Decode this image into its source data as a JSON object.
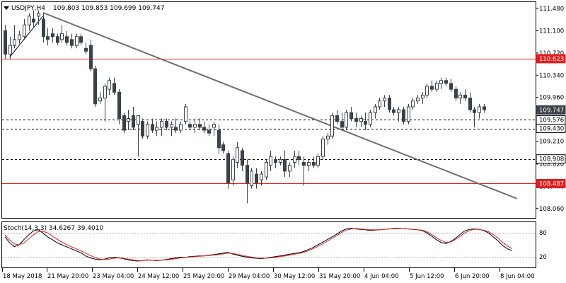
{
  "header": {
    "symbol": "USDJPY,H4",
    "ohlc": "109.803 109.853 109.699 109.747"
  },
  "stoch_header": {
    "label": "Stoch(14,3,3) 34.6267 39.4010"
  },
  "colors": {
    "candle": "#3a4149",
    "trendline": "#6e6e6e",
    "resistance": "#e02020",
    "current_price": "#3a4149",
    "stoch_main": "#000000",
    "stoch_signal": "#e02020"
  },
  "chart_data": [
    {
      "type": "candlestick",
      "title": "USDJPY,H4",
      "ylim": [
        107.9,
        111.59
      ],
      "y_ticks": [
        "111.480",
        "111.100",
        "110.720",
        "110.340",
        "109.960",
        "109.210",
        "108.820",
        "108.440",
        "108.060"
      ],
      "x_ticks": [
        "18 May 2018",
        "21 May 20:00",
        "23 May 04:00",
        "24 May 12:00",
        "25 May 20:00",
        "29 May 04:00",
        "30 May 12:00",
        "31 May 20:00",
        "4 Jun 04:00",
        "5 Jun 12:00",
        "6 Jun 20:00",
        "8 Jun 04:00"
      ],
      "price_labels": [
        {
          "value": 110.623,
          "text": "110.623",
          "style": "red"
        },
        {
          "value": 109.747,
          "text": "109.747",
          "style": "current"
        },
        {
          "value": 109.576,
          "text": "109.576",
          "style": "black"
        },
        {
          "value": 109.43,
          "text": "109.430",
          "style": "black"
        },
        {
          "value": 108.908,
          "text": "108.908",
          "style": "black"
        },
        {
          "value": 108.487,
          "text": "108.487",
          "style": "red"
        }
      ],
      "horizontal_lines": [
        {
          "value": 110.623,
          "style": "red-solid"
        },
        {
          "value": 109.576,
          "style": "black-dashed"
        },
        {
          "value": 109.43,
          "style": "black-dashed"
        },
        {
          "value": 108.908,
          "style": "black-dashed"
        },
        {
          "value": 108.487,
          "style": "red-solid"
        }
      ],
      "trendlines": [
        {
          "x1": 8,
          "y1": 111.41,
          "x2": 108,
          "y2": 108.23
        },
        {
          "x1": 1,
          "y1": 110.65,
          "x2": 8,
          "y2": 111.35
        }
      ],
      "candles": [
        {
          "o": 111.1,
          "h": 111.2,
          "l": 110.62,
          "c": 110.7
        },
        {
          "o": 110.7,
          "h": 111.0,
          "l": 110.62,
          "c": 110.85
        },
        {
          "o": 110.85,
          "h": 111.2,
          "l": 110.8,
          "c": 110.95
        },
        {
          "o": 110.95,
          "h": 111.1,
          "l": 110.88,
          "c": 111.03
        },
        {
          "o": 111.0,
          "h": 111.3,
          "l": 110.95,
          "c": 111.2
        },
        {
          "o": 111.2,
          "h": 111.4,
          "l": 111.1,
          "c": 111.35
        },
        {
          "o": 111.3,
          "h": 111.45,
          "l": 111.15,
          "c": 111.25
        },
        {
          "o": 111.35,
          "h": 111.45,
          "l": 111.2,
          "c": 111.4
        },
        {
          "o": 111.3,
          "h": 111.4,
          "l": 110.9,
          "c": 111.0
        },
        {
          "o": 111.0,
          "h": 111.15,
          "l": 110.85,
          "c": 110.95
        },
        {
          "o": 111.05,
          "h": 111.15,
          "l": 110.9,
          "c": 111.0
        },
        {
          "o": 111.0,
          "h": 111.05,
          "l": 110.85,
          "c": 110.9
        },
        {
          "o": 110.95,
          "h": 111.2,
          "l": 110.9,
          "c": 111.05
        },
        {
          "o": 111.0,
          "h": 111.1,
          "l": 110.85,
          "c": 110.9
        },
        {
          "o": 110.95,
          "h": 111.05,
          "l": 110.8,
          "c": 110.85
        },
        {
          "o": 110.85,
          "h": 111.05,
          "l": 110.8,
          "c": 111.0
        },
        {
          "o": 111.0,
          "h": 111.05,
          "l": 110.85,
          "c": 110.9
        },
        {
          "o": 110.8,
          "h": 110.9,
          "l": 110.7,
          "c": 110.75
        },
        {
          "o": 110.85,
          "h": 110.95,
          "l": 110.4,
          "c": 110.45
        },
        {
          "o": 110.45,
          "h": 110.5,
          "l": 109.8,
          "c": 109.85
        },
        {
          "o": 109.9,
          "h": 110.05,
          "l": 109.85,
          "c": 109.95
        },
        {
          "o": 109.95,
          "h": 110.2,
          "l": 109.55,
          "c": 110.15
        },
        {
          "o": 110.1,
          "h": 110.3,
          "l": 110.0,
          "c": 110.25
        },
        {
          "o": 110.2,
          "h": 110.3,
          "l": 110.0,
          "c": 110.05
        },
        {
          "o": 110.05,
          "h": 110.1,
          "l": 109.5,
          "c": 109.6
        },
        {
          "o": 109.65,
          "h": 109.7,
          "l": 109.35,
          "c": 109.4
        },
        {
          "o": 109.55,
          "h": 109.75,
          "l": 109.4,
          "c": 109.6
        },
        {
          "o": 109.65,
          "h": 109.8,
          "l": 109.4,
          "c": 109.45
        },
        {
          "o": 109.5,
          "h": 109.65,
          "l": 108.95,
          "c": 109.65
        },
        {
          "o": 109.55,
          "h": 109.6,
          "l": 109.25,
          "c": 109.3
        },
        {
          "o": 109.3,
          "h": 109.55,
          "l": 109.25,
          "c": 109.5
        },
        {
          "o": 109.5,
          "h": 109.6,
          "l": 109.35,
          "c": 109.4
        },
        {
          "o": 109.4,
          "h": 109.55,
          "l": 109.3,
          "c": 109.45
        },
        {
          "o": 109.45,
          "h": 109.6,
          "l": 109.3,
          "c": 109.55
        },
        {
          "o": 109.55,
          "h": 109.6,
          "l": 109.4,
          "c": 109.45
        },
        {
          "o": 109.45,
          "h": 109.55,
          "l": 109.3,
          "c": 109.5
        },
        {
          "o": 109.45,
          "h": 109.6,
          "l": 109.35,
          "c": 109.4
        },
        {
          "o": 109.4,
          "h": 109.55,
          "l": 109.35,
          "c": 109.5
        },
        {
          "o": 109.55,
          "h": 109.85,
          "l": 109.5,
          "c": 109.8
        },
        {
          "o": 109.5,
          "h": 109.55,
          "l": 109.4,
          "c": 109.45
        },
        {
          "o": 109.45,
          "h": 109.6,
          "l": 109.35,
          "c": 109.5
        },
        {
          "o": 109.5,
          "h": 109.6,
          "l": 109.4,
          "c": 109.45
        },
        {
          "o": 109.45,
          "h": 109.55,
          "l": 109.35,
          "c": 109.4
        },
        {
          "o": 109.4,
          "h": 109.5,
          "l": 109.3,
          "c": 109.35
        },
        {
          "o": 109.45,
          "h": 109.55,
          "l": 109.3,
          "c": 109.5
        },
        {
          "o": 109.4,
          "h": 109.5,
          "l": 109.0,
          "c": 109.1
        },
        {
          "o": 109.15,
          "h": 109.2,
          "l": 109.0,
          "c": 109.05
        },
        {
          "o": 109.0,
          "h": 109.05,
          "l": 108.4,
          "c": 108.5
        },
        {
          "o": 108.55,
          "h": 108.95,
          "l": 108.45,
          "c": 108.9
        },
        {
          "o": 108.85,
          "h": 109.2,
          "l": 108.75,
          "c": 109.1
        },
        {
          "o": 109.05,
          "h": 109.1,
          "l": 108.7,
          "c": 108.8
        },
        {
          "o": 108.8,
          "h": 108.9,
          "l": 108.15,
          "c": 108.5
        },
        {
          "o": 108.45,
          "h": 108.75,
          "l": 108.4,
          "c": 108.7
        },
        {
          "o": 108.65,
          "h": 108.75,
          "l": 108.4,
          "c": 108.5
        },
        {
          "o": 108.55,
          "h": 108.7,
          "l": 108.45,
          "c": 108.65
        },
        {
          "o": 108.6,
          "h": 108.9,
          "l": 108.55,
          "c": 108.85
        },
        {
          "o": 108.8,
          "h": 109.05,
          "l": 108.7,
          "c": 108.95
        },
        {
          "o": 108.9,
          "h": 108.95,
          "l": 108.75,
          "c": 108.85
        },
        {
          "o": 108.85,
          "h": 108.95,
          "l": 108.8,
          "c": 108.9
        },
        {
          "o": 108.9,
          "h": 109.05,
          "l": 108.6,
          "c": 108.7
        },
        {
          "o": 108.7,
          "h": 108.85,
          "l": 108.6,
          "c": 108.8
        },
        {
          "o": 108.85,
          "h": 109.05,
          "l": 108.75,
          "c": 108.95
        },
        {
          "o": 108.95,
          "h": 109.05,
          "l": 108.8,
          "c": 108.9
        },
        {
          "o": 108.85,
          "h": 108.95,
          "l": 108.45,
          "c": 108.8
        },
        {
          "o": 108.8,
          "h": 108.9,
          "l": 108.7,
          "c": 108.85
        },
        {
          "o": 108.85,
          "h": 108.95,
          "l": 108.75,
          "c": 108.8
        },
        {
          "o": 108.8,
          "h": 109.0,
          "l": 108.75,
          "c": 108.95
        },
        {
          "o": 108.95,
          "h": 109.3,
          "l": 108.9,
          "c": 109.25
        },
        {
          "o": 109.25,
          "h": 109.35,
          "l": 109.15,
          "c": 109.3
        },
        {
          "o": 109.3,
          "h": 109.7,
          "l": 109.25,
          "c": 109.65
        },
        {
          "o": 109.65,
          "h": 109.75,
          "l": 109.5,
          "c": 109.55
        },
        {
          "o": 109.55,
          "h": 109.7,
          "l": 109.4,
          "c": 109.45
        },
        {
          "o": 109.45,
          "h": 109.75,
          "l": 109.4,
          "c": 109.7
        },
        {
          "o": 109.7,
          "h": 109.8,
          "l": 109.55,
          "c": 109.6
        },
        {
          "o": 109.6,
          "h": 109.7,
          "l": 109.45,
          "c": 109.55
        },
        {
          "o": 109.55,
          "h": 109.65,
          "l": 109.45,
          "c": 109.6
        },
        {
          "o": 109.55,
          "h": 109.7,
          "l": 109.4,
          "c": 109.5
        },
        {
          "o": 109.5,
          "h": 109.75,
          "l": 109.45,
          "c": 109.7
        },
        {
          "o": 109.7,
          "h": 109.85,
          "l": 109.6,
          "c": 109.8
        },
        {
          "o": 109.8,
          "h": 109.95,
          "l": 109.75,
          "c": 109.9
        },
        {
          "o": 109.9,
          "h": 110.0,
          "l": 109.8,
          "c": 109.95
        },
        {
          "o": 109.95,
          "h": 110.0,
          "l": 109.7,
          "c": 109.75
        },
        {
          "o": 109.75,
          "h": 109.8,
          "l": 109.65,
          "c": 109.7
        },
        {
          "o": 109.7,
          "h": 109.8,
          "l": 109.55,
          "c": 109.75
        },
        {
          "o": 109.75,
          "h": 109.8,
          "l": 109.5,
          "c": 109.55
        },
        {
          "o": 109.55,
          "h": 109.85,
          "l": 109.5,
          "c": 109.8
        },
        {
          "o": 109.8,
          "h": 109.95,
          "l": 109.75,
          "c": 109.9
        },
        {
          "o": 109.9,
          "h": 110.0,
          "l": 109.85,
          "c": 109.95
        },
        {
          "o": 109.95,
          "h": 110.05,
          "l": 109.85,
          "c": 110.0
        },
        {
          "o": 110.0,
          "h": 110.2,
          "l": 109.95,
          "c": 110.15
        },
        {
          "o": 110.15,
          "h": 110.25,
          "l": 110.05,
          "c": 110.1
        },
        {
          "o": 110.1,
          "h": 110.25,
          "l": 110.05,
          "c": 110.2
        },
        {
          "o": 110.2,
          "h": 110.3,
          "l": 110.1,
          "c": 110.25
        },
        {
          "o": 110.25,
          "h": 110.3,
          "l": 110.15,
          "c": 110.2
        },
        {
          "o": 110.2,
          "h": 110.28,
          "l": 110.05,
          "c": 110.1
        },
        {
          "o": 110.1,
          "h": 110.15,
          "l": 109.9,
          "c": 109.95
        },
        {
          "o": 109.95,
          "h": 110.05,
          "l": 109.85,
          "c": 110.0
        },
        {
          "o": 110.0,
          "h": 110.1,
          "l": 109.9,
          "c": 109.95
        },
        {
          "o": 109.95,
          "h": 110.05,
          "l": 109.7,
          "c": 109.75
        },
        {
          "o": 109.75,
          "h": 109.8,
          "l": 109.45,
          "c": 109.7
        },
        {
          "o": 109.7,
          "h": 109.85,
          "l": 109.6,
          "c": 109.8
        },
        {
          "o": 109.8,
          "h": 109.85,
          "l": 109.7,
          "c": 109.75
        }
      ]
    },
    {
      "type": "line",
      "title": "Stoch(14,3,3)",
      "ylim": [
        0,
        100
      ],
      "y_ticks": [
        "80",
        "20"
      ],
      "levels": [
        80,
        20
      ],
      "series": [
        {
          "name": "Main",
          "values": [
            70,
            55,
            45,
            50,
            63,
            75,
            85,
            88,
            80,
            70,
            63,
            55,
            50,
            45,
            40,
            35,
            30,
            22,
            17,
            14,
            12,
            14,
            17,
            19,
            17,
            15,
            12,
            10,
            9,
            10,
            12,
            11,
            10,
            11,
            13,
            15,
            17,
            19,
            18,
            20,
            21,
            22,
            22,
            24,
            25,
            27,
            29,
            31,
            27,
            24,
            21,
            19,
            17,
            16,
            15,
            16,
            18,
            20,
            22,
            24,
            26,
            28,
            30,
            33,
            38,
            43,
            50,
            56,
            63,
            70,
            77,
            85,
            90,
            92,
            90,
            89,
            88,
            86,
            87,
            88,
            89,
            90,
            91,
            92,
            91,
            90,
            89,
            88,
            86,
            80,
            72,
            63,
            56,
            53,
            58,
            66,
            76,
            85,
            89,
            90,
            89,
            86,
            80,
            70,
            60,
            48,
            40,
            35
          ]
        },
        {
          "name": "Signal",
          "values": [
            75,
            62,
            52,
            50,
            55,
            65,
            75,
            83,
            84,
            80,
            72,
            64,
            57,
            51,
            45,
            40,
            35,
            29,
            23,
            18,
            14,
            13,
            14,
            16,
            17,
            16,
            14,
            12,
            10,
            10,
            11,
            11,
            11,
            11,
            12,
            13,
            15,
            17,
            18,
            19,
            20,
            21,
            22,
            23,
            24,
            25,
            27,
            29,
            28,
            26,
            23,
            21,
            19,
            17,
            16,
            16,
            17,
            18,
            20,
            22,
            24,
            26,
            28,
            31,
            35,
            40,
            46,
            52,
            59,
            66,
            73,
            81,
            87,
            90,
            91,
            90,
            89,
            88,
            88,
            88,
            89,
            90,
            90,
            91,
            91,
            90,
            89,
            88,
            87,
            83,
            76,
            68,
            61,
            56,
            57,
            63,
            71,
            80,
            86,
            89,
            89,
            87,
            83,
            76,
            67,
            56,
            47,
            40
          ]
        }
      ]
    }
  ]
}
